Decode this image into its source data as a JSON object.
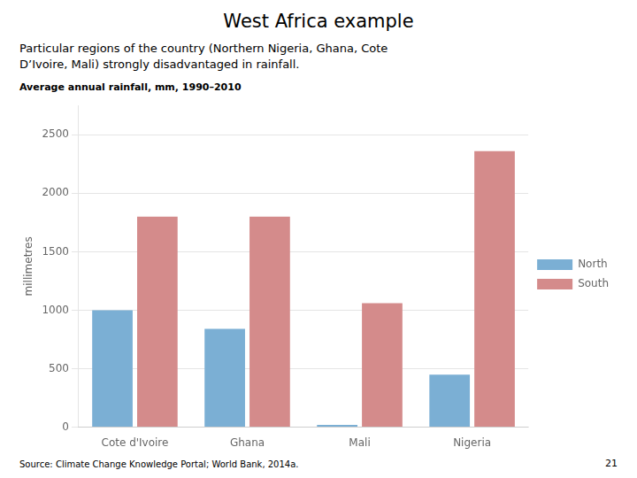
{
  "chart_data": {
    "type": "bar",
    "title": "West Africa example",
    "subtitle": [
      "Particular regions of the country (Northern Nigeria, Ghana, Cote",
      "D’Ivoire, Mali) strongly disadvantaged in rainfall."
    ],
    "annotations": [
      "Average annual rainfall, mm, 1990–2010",
      "Source: Climate Change Knowledge Portal; World Bank, 2014a.",
      "21"
    ],
    "ylabel": "millimetres",
    "categories": [
      "Cote d'Ivoire",
      "Ghana",
      "Mali",
      "Nigeria"
    ],
    "series": [
      {
        "name": "North",
        "color": "#7BAFD4",
        "values": [
          1000,
          840,
          20,
          450
        ]
      },
      {
        "name": "South",
        "color": "#D48B8B",
        "values": [
          1800,
          1800,
          1060,
          2360
        ]
      }
    ],
    "ylim": [
      0,
      2750
    ],
    "yticks": [
      0,
      500,
      1000,
      1500,
      2000,
      2500
    ],
    "grid": true,
    "legend": "right"
  }
}
